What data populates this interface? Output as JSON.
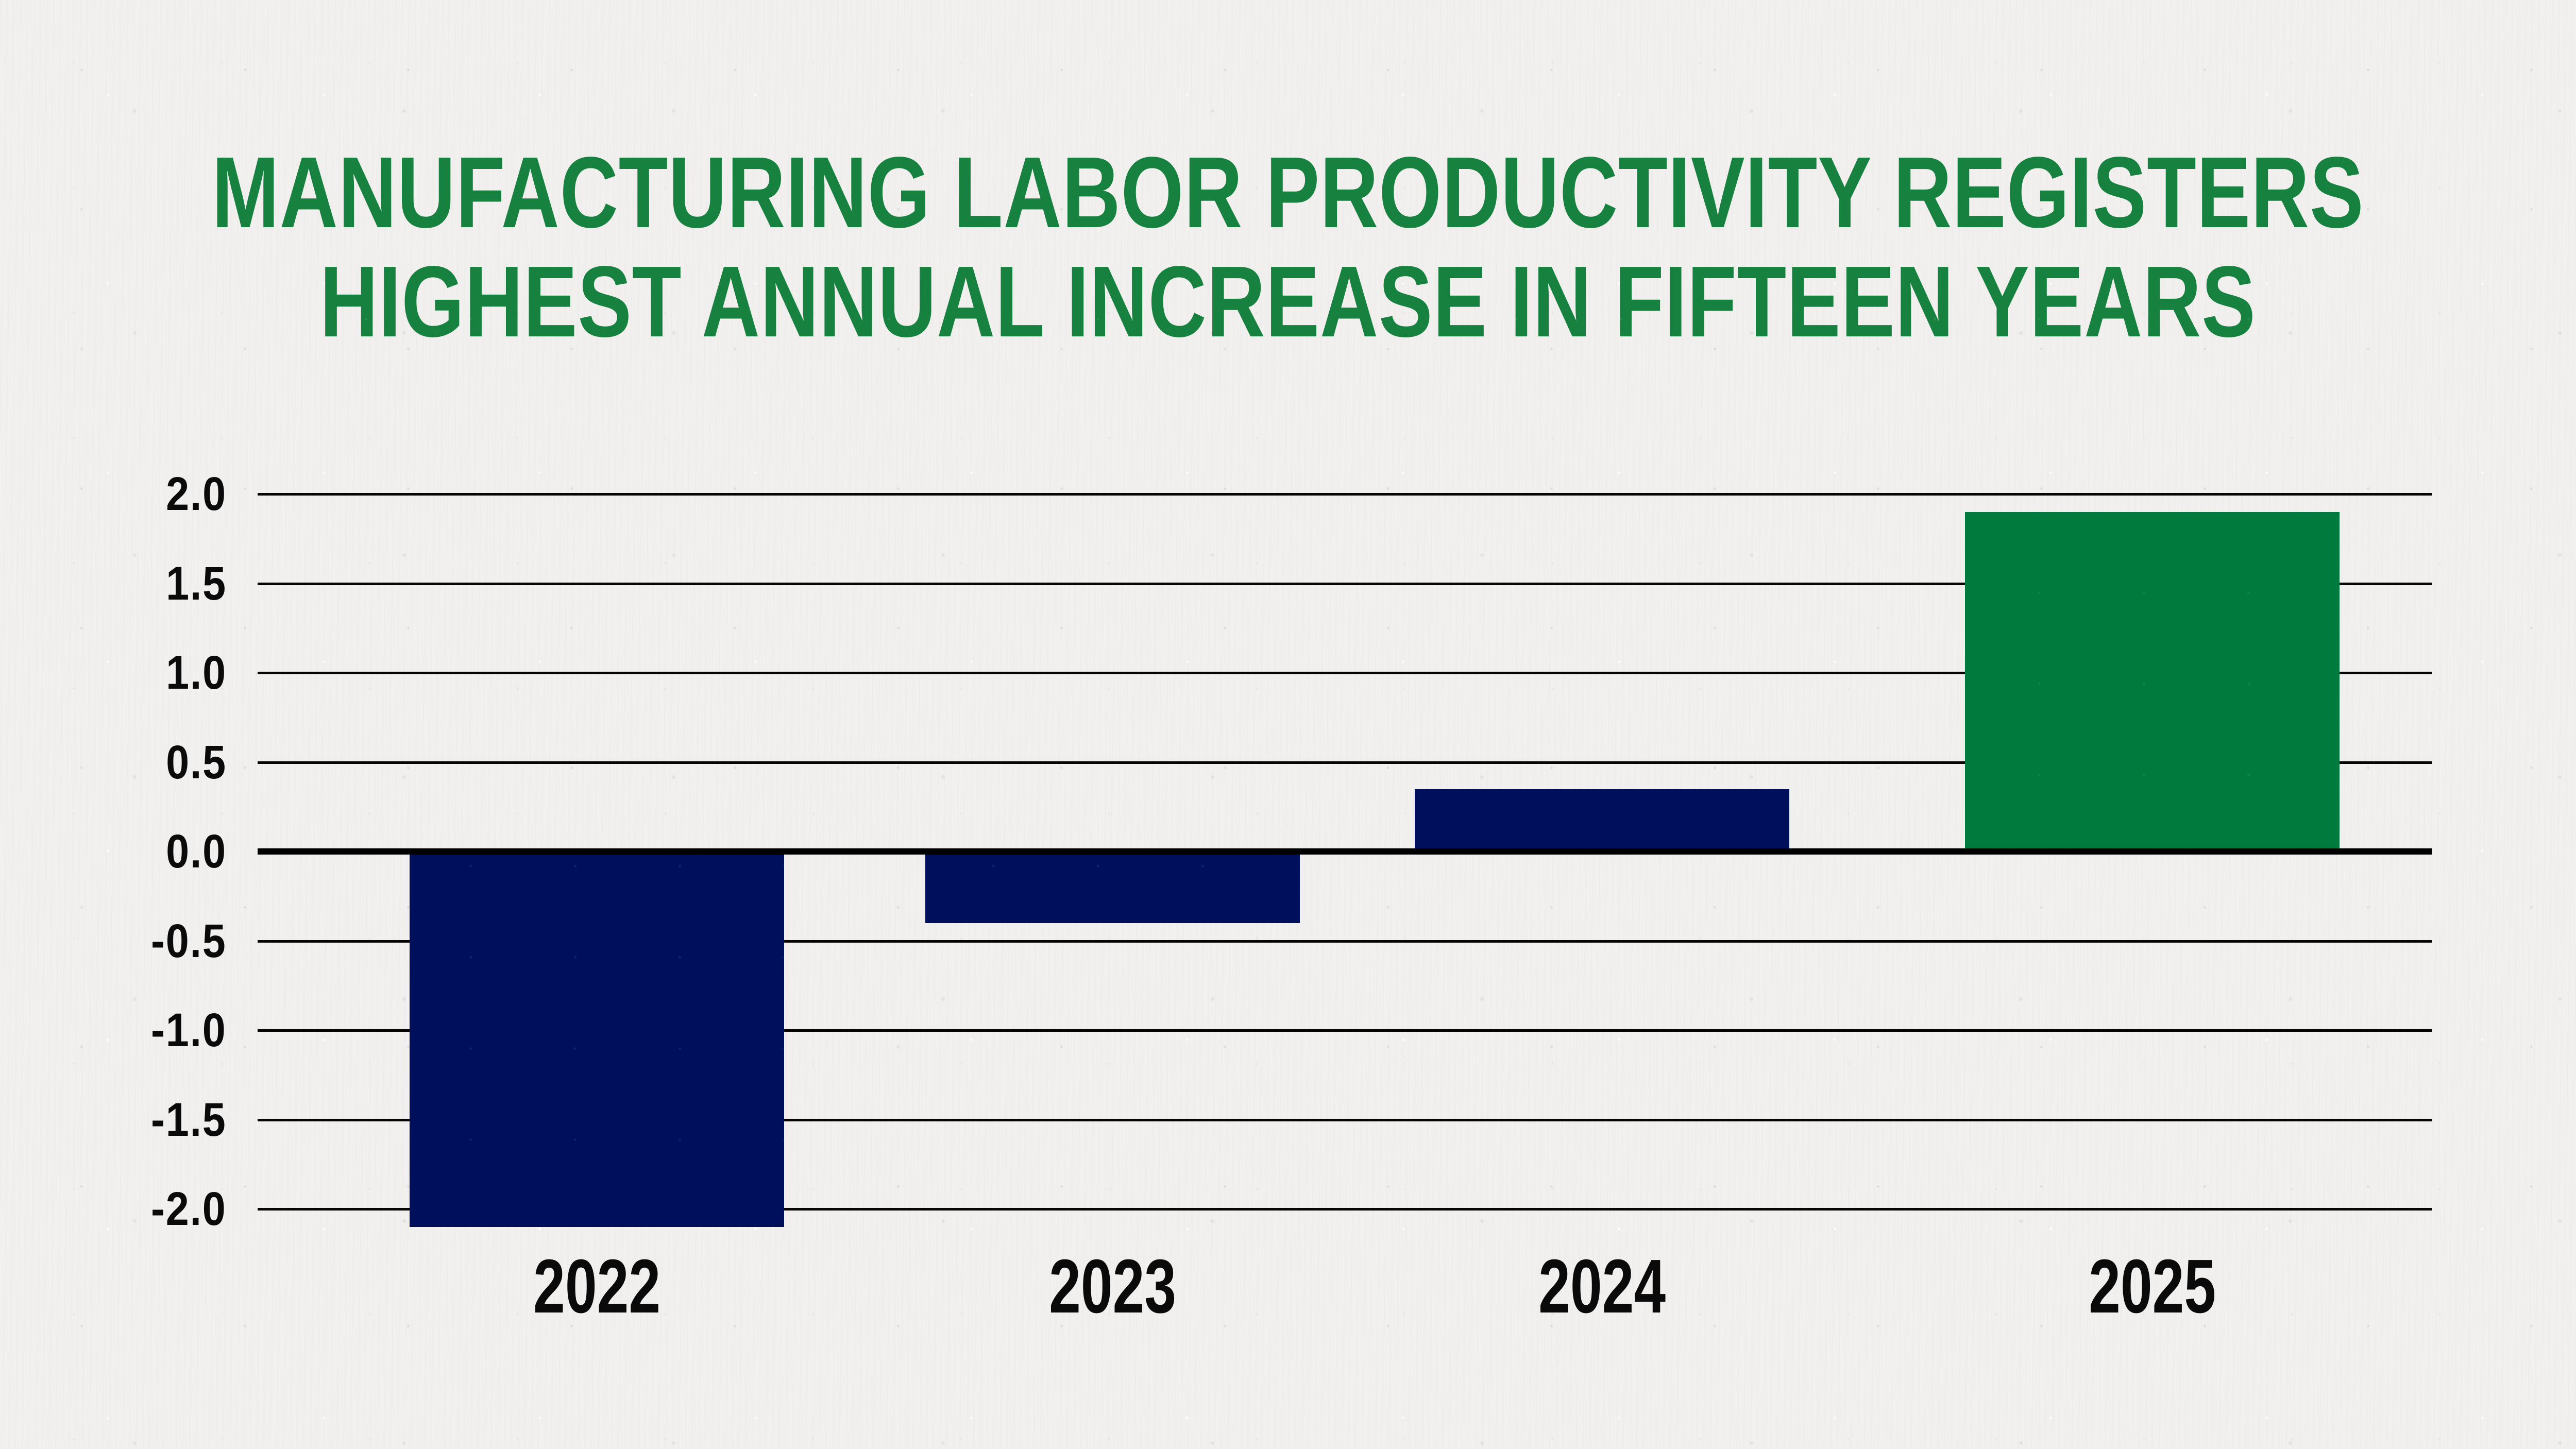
{
  "title": {
    "line1": "MANUFACTURING LABOR PRODUCTIVITY REGISTERS",
    "line2": "HIGHEST ANNUAL INCREASE IN FIFTEEN YEARS",
    "color": "#17823F"
  },
  "chart_data": {
    "type": "bar",
    "categories": [
      "2022",
      "2023",
      "2024",
      "2025"
    ],
    "values": [
      -2.1,
      -0.4,
      0.35,
      1.9
    ],
    "bar_colors": [
      "#000F5C",
      "#000F5C",
      "#000F5C",
      "#007A3D"
    ],
    "y_ticks": [
      2.0,
      1.5,
      1.0,
      0.5,
      0.0,
      -0.5,
      -1.0,
      -1.5,
      -2.0
    ],
    "y_tick_labels": [
      "2.0",
      "1.5",
      "1.0",
      "0.5",
      "0.0",
      "-0.5",
      "-1.0",
      "-1.5",
      "-2.0"
    ],
    "ylim": [
      -2.1,
      2.0
    ],
    "grid": true,
    "legend": false,
    "title": "",
    "xlabel": "",
    "ylabel": ""
  },
  "colors": {
    "background": "#F1F0EE",
    "gridline": "#050505",
    "zero_axis": "#000000",
    "tick_text": "#0A0A0A",
    "bar_navy": "#000F5C",
    "bar_green": "#007A3D",
    "title_green": "#17823F"
  }
}
